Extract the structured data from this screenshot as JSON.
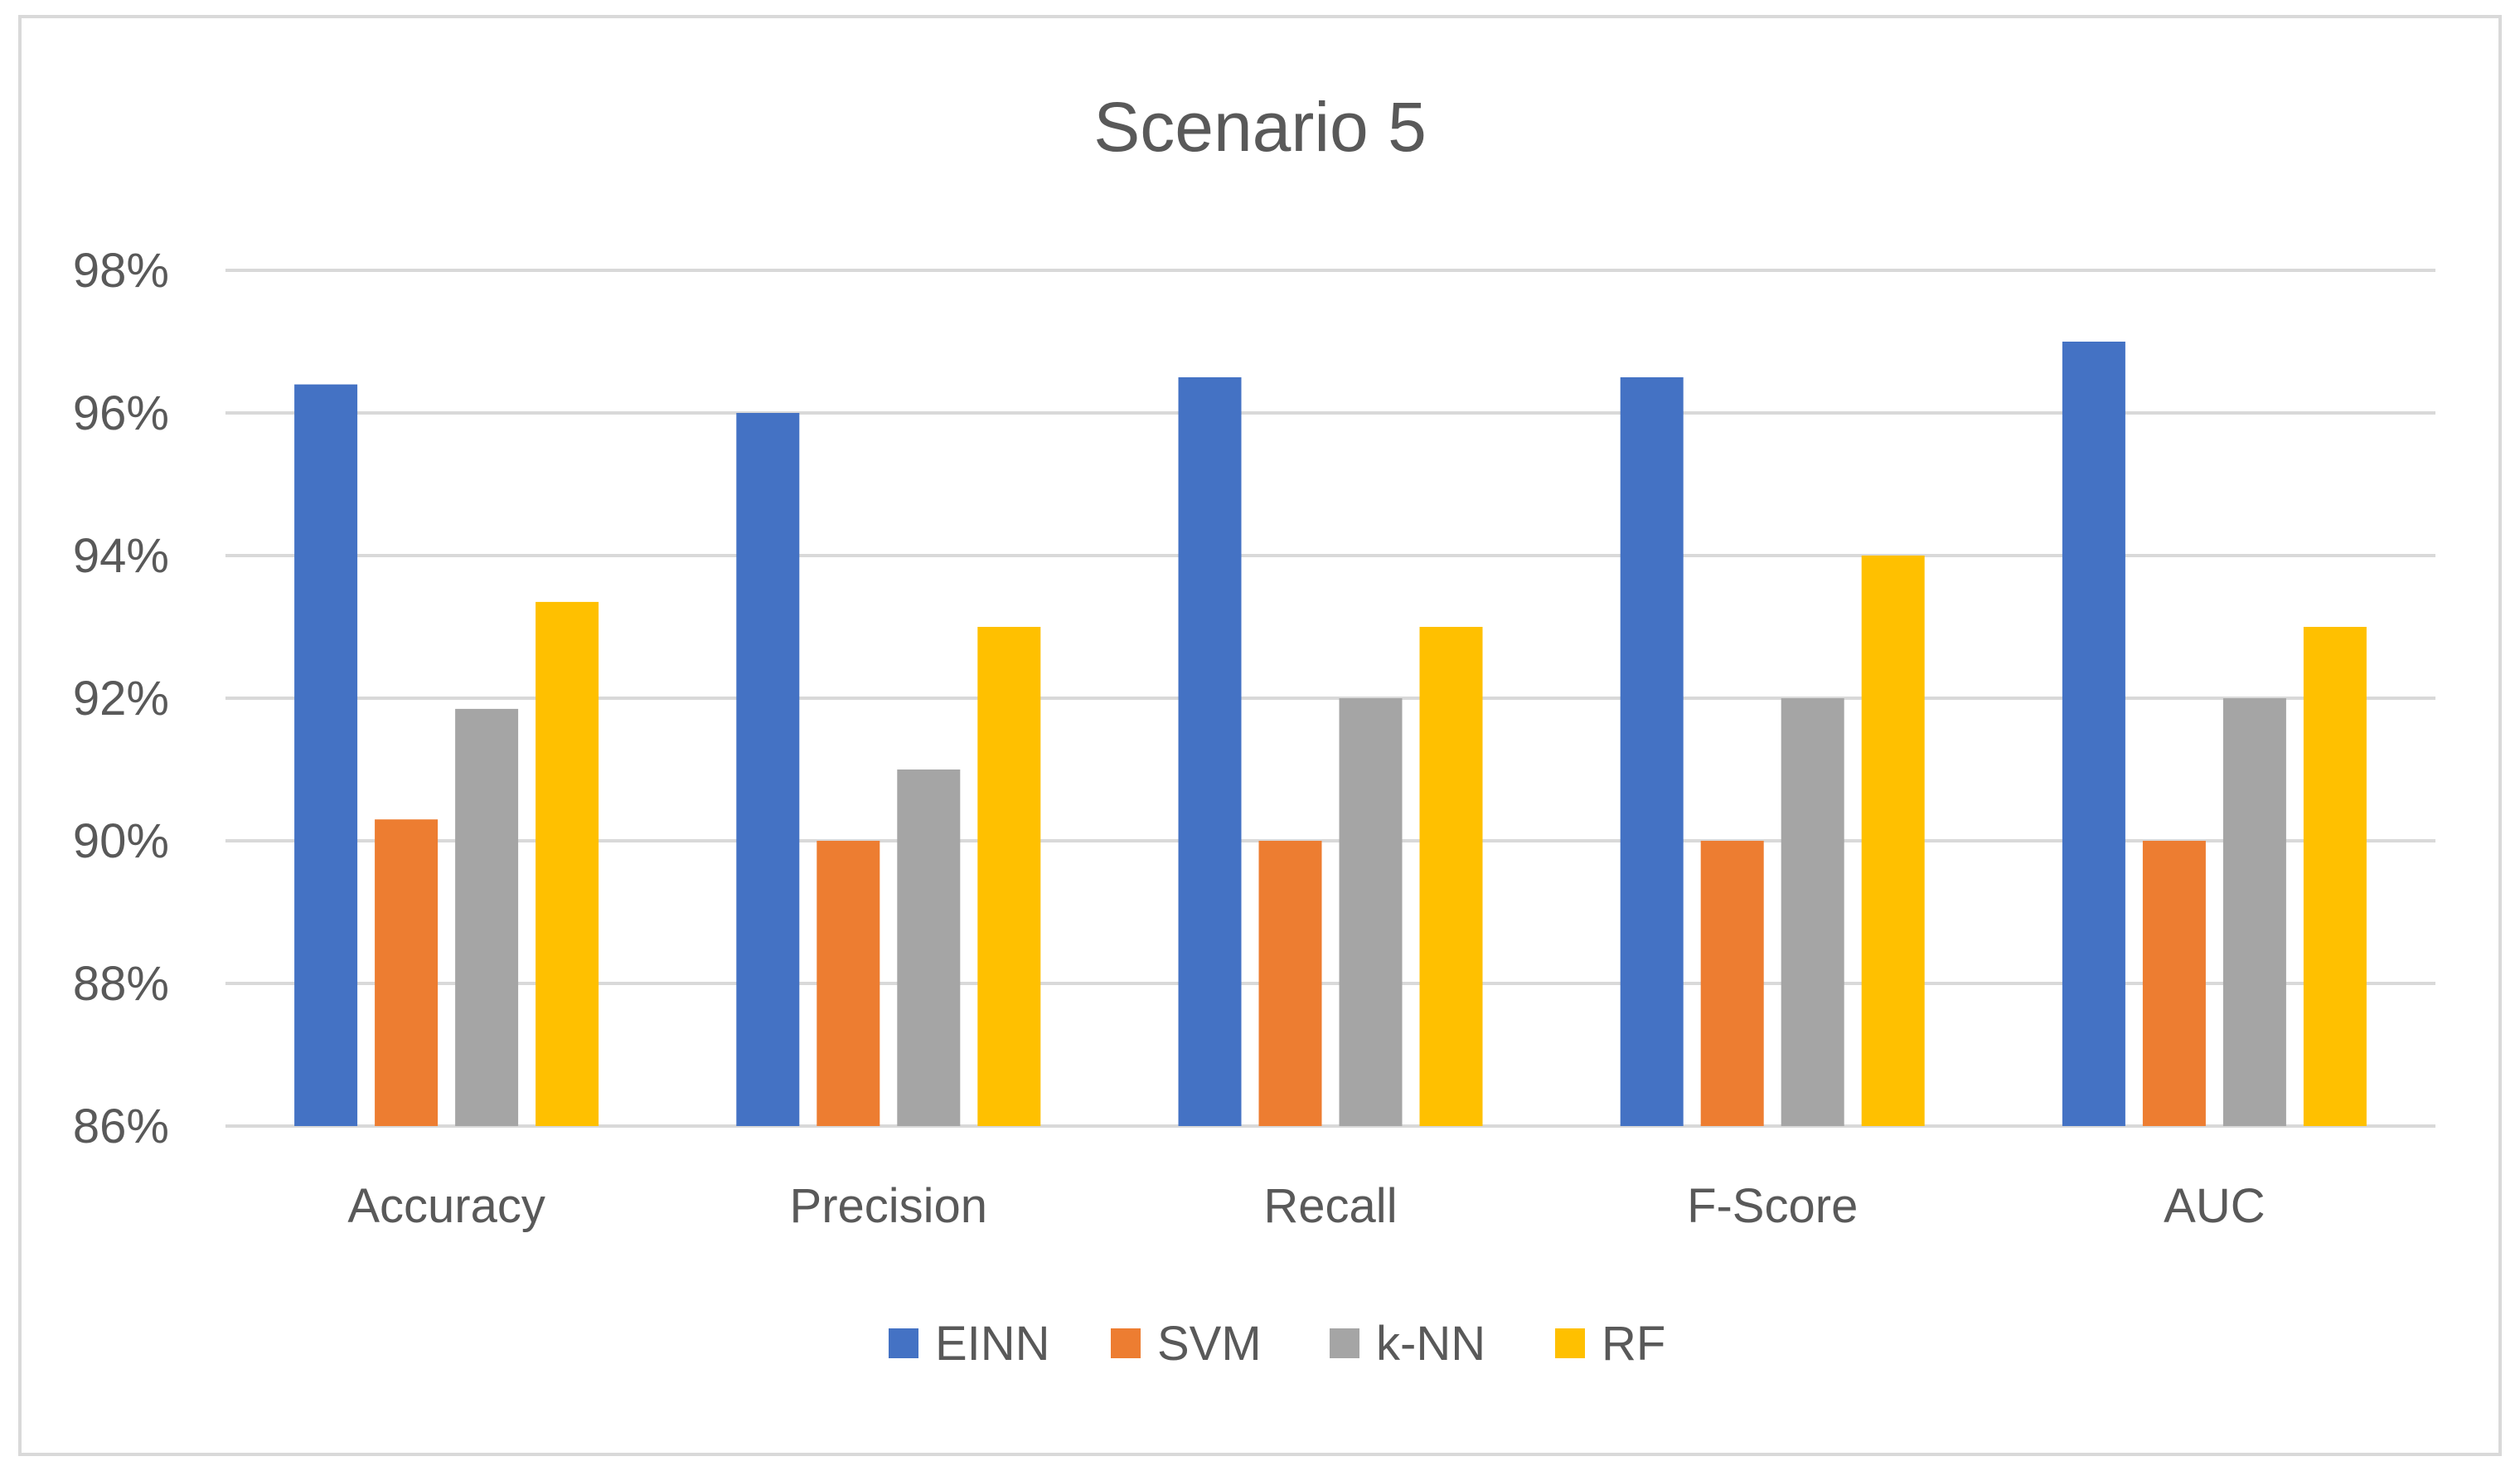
{
  "chart_data": {
    "type": "bar",
    "title": "Scenario 5",
    "xlabel": "",
    "ylabel": "",
    "categories": [
      "Accuracy",
      "Precision",
      "Recall",
      "F-Score",
      "AUC"
    ],
    "series": [
      {
        "name": "EINN",
        "color": "#4472C4",
        "values": [
          96.4,
          96.0,
          96.5,
          96.5,
          97.0
        ]
      },
      {
        "name": "SVM",
        "color": "#ED7D31",
        "values": [
          90.3,
          90.0,
          90.0,
          90.0,
          90.0
        ]
      },
      {
        "name": "k-NN",
        "color": "#A5A5A5",
        "values": [
          91.85,
          91.0,
          92.0,
          92.0,
          92.0
        ]
      },
      {
        "name": "RF",
        "color": "#FFC000",
        "values": [
          93.35,
          93.0,
          93.0,
          94.0,
          93.0
        ]
      }
    ],
    "ylim": [
      86,
      98
    ],
    "yticks": [
      86,
      88,
      90,
      92,
      94,
      96,
      98
    ],
    "ytick_labels": [
      "86%",
      "88%",
      "90%",
      "92%",
      "94%",
      "96%",
      "98%"
    ],
    "grid": true,
    "legend": "bottom"
  }
}
